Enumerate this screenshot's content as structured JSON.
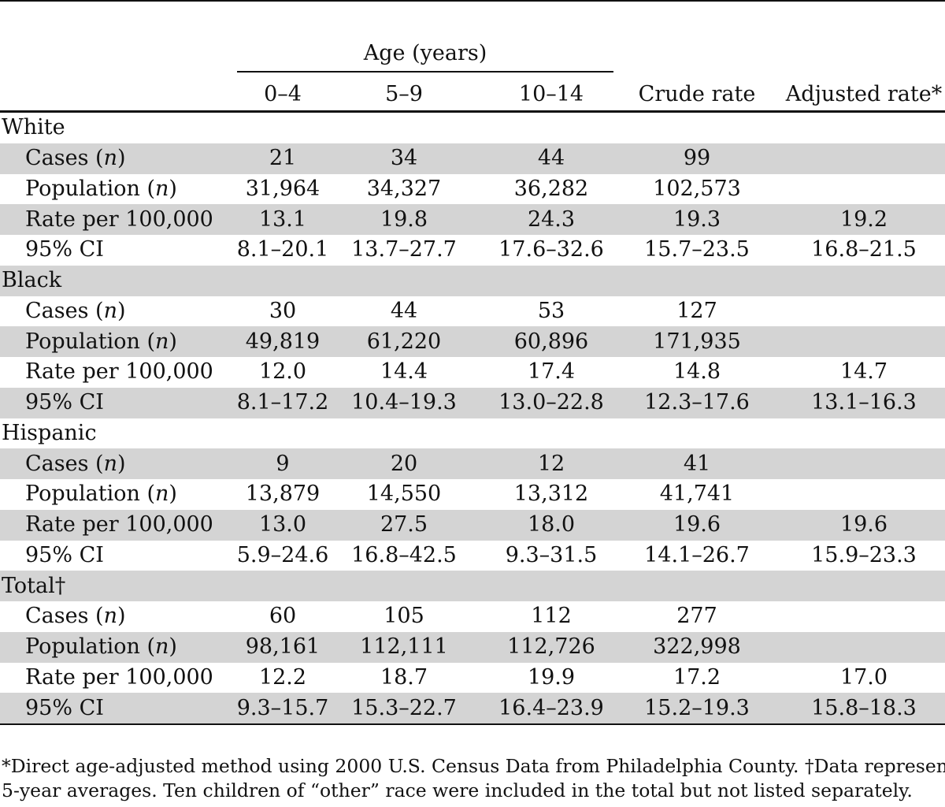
{
  "header": {
    "group_label": "Age (years)",
    "columns": [
      "0–4",
      "5–9",
      "10–14",
      "Crude rate",
      "Adjusted rate*"
    ]
  },
  "groups": [
    {
      "name": "White",
      "rows": [
        {
          "label": "Cases (",
          "n": "n",
          "close": ")",
          "values": [
            "21",
            "34",
            "44",
            "99",
            ""
          ]
        },
        {
          "label": "Population (",
          "n": "n",
          "close": ")",
          "values": [
            "31,964",
            "34,327",
            "36,282",
            "102,573",
            ""
          ]
        },
        {
          "label": "Rate per 100,000",
          "n": "",
          "close": "",
          "values": [
            "13.1",
            "19.8",
            "24.3",
            "19.3",
            "19.2"
          ]
        },
        {
          "label": "95% CI",
          "n": "",
          "close": "",
          "values": [
            "8.1–20.1",
            "13.7–27.7",
            "17.6–32.6",
            "15.7–23.5",
            "16.8–21.5"
          ]
        }
      ]
    },
    {
      "name": "Black",
      "rows": [
        {
          "label": "Cases (",
          "n": "n",
          "close": ")",
          "values": [
            "30",
            "44",
            "53",
            "127",
            ""
          ]
        },
        {
          "label": "Population (",
          "n": "n",
          "close": ")",
          "values": [
            "49,819",
            "61,220",
            "60,896",
            "171,935",
            ""
          ]
        },
        {
          "label": "Rate per 100,000",
          "n": "",
          "close": "",
          "values": [
            "12.0",
            "14.4",
            "17.4",
            "14.8",
            "14.7"
          ]
        },
        {
          "label": "95% CI",
          "n": "",
          "close": "",
          "values": [
            "8.1–17.2",
            "10.4–19.3",
            "13.0–22.8",
            "12.3–17.6",
            "13.1–16.3"
          ]
        }
      ]
    },
    {
      "name": "Hispanic",
      "rows": [
        {
          "label": "Cases (",
          "n": "n",
          "close": ")",
          "values": [
            "9",
            "20",
            "12",
            "41",
            ""
          ]
        },
        {
          "label": "Population (",
          "n": "n",
          "close": ")",
          "values": [
            "13,879",
            "14,550",
            "13,312",
            "41,741",
            ""
          ]
        },
        {
          "label": "Rate per 100,000",
          "n": "",
          "close": "",
          "values": [
            "13.0",
            "27.5",
            "18.0",
            "19.6",
            "19.6"
          ]
        },
        {
          "label": "95% CI",
          "n": "",
          "close": "",
          "values": [
            "5.9–24.6",
            "16.8–42.5",
            "9.3–31.5",
            "14.1–26.7",
            "15.9–23.3"
          ]
        }
      ]
    },
    {
      "name": "Total†",
      "rows": [
        {
          "label": "Cases (",
          "n": "n",
          "close": ")",
          "values": [
            "60",
            "105",
            "112",
            "277",
            ""
          ]
        },
        {
          "label": "Population (",
          "n": "n",
          "close": ")",
          "values": [
            "98,161",
            "112,111",
            "112,726",
            "322,998",
            ""
          ]
        },
        {
          "label": "Rate per 100,000",
          "n": "",
          "close": "",
          "values": [
            "12.2",
            "18.7",
            "19.9",
            "17.2",
            "17.0"
          ]
        },
        {
          "label": "95% CI",
          "n": "",
          "close": "",
          "values": [
            "9.3–15.7",
            "15.3–22.7",
            "16.4–23.9",
            "15.2–19.3",
            "15.8–18.3"
          ]
        }
      ]
    }
  ],
  "footnote": {
    "line1": "*Direct age-adjusted method using 2000 U.S. Census Data from Philadelphia County. †Data represent the",
    "line2": "5-year averages. Ten children of “other” race were included in the total but not listed separately."
  },
  "colors": {
    "shade": "#d4d4d4",
    "rule": "#111111"
  }
}
